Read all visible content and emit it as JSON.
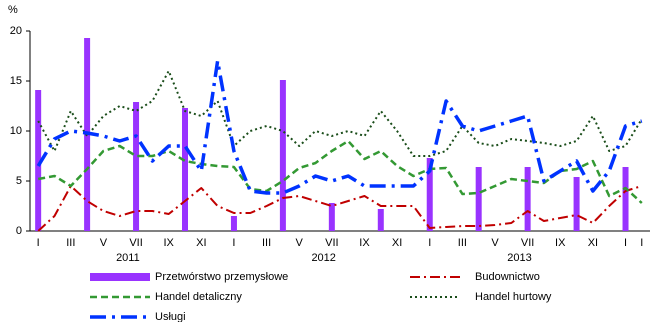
{
  "chart_data": {
    "type": "combo",
    "y_label": "%",
    "ylim": [
      0,
      20
    ],
    "yticks": [
      0,
      5,
      10,
      15,
      20
    ],
    "grid": false,
    "categories": [
      "I",
      null,
      "III",
      null,
      "V",
      null,
      "VII",
      null,
      "IX",
      null,
      "XI",
      null,
      "I",
      null,
      "III",
      null,
      "V",
      null,
      "VII",
      null,
      "IX",
      null,
      "XI",
      null,
      "I",
      null,
      "III",
      null,
      "V",
      null,
      "VII",
      null,
      "IX",
      null,
      "XI",
      null,
      "I",
      "I"
    ],
    "year_labels": [
      "2011",
      "2012",
      "2013"
    ],
    "series": [
      {
        "name": "Przetwórstwo przemysłowe",
        "type": "bar",
        "color": "#9933ff",
        "values": [
          14.1,
          null,
          null,
          19.3,
          null,
          null,
          12.9,
          null,
          null,
          12.3,
          null,
          null,
          1.5,
          null,
          null,
          15.1,
          null,
          null,
          2.8,
          null,
          null,
          2.2,
          null,
          null,
          7.3,
          null,
          null,
          6.4,
          null,
          null,
          6.4,
          null,
          null,
          5.4,
          null,
          null,
          6.4,
          null
        ]
      },
      {
        "name": "Budownictwo",
        "type": "line",
        "color": "#c00000",
        "dash": "10 4 2 4",
        "width": 2,
        "values": [
          0,
          1.5,
          4.5,
          3,
          2,
          1.5,
          2,
          2,
          1.7,
          3,
          4.3,
          2.5,
          1.8,
          1.8,
          2.5,
          3.3,
          3.5,
          3,
          2.5,
          3,
          3.5,
          2.5,
          2.5,
          2.5,
          0.3,
          0.4,
          0.5,
          0.5,
          0.6,
          0.8,
          2,
          1,
          1.3,
          1.6,
          0.8,
          2.5,
          4,
          4.5
        ]
      },
      {
        "name": "Handel detaliczny",
        "type": "line",
        "color": "#339933",
        "dash": "7 4",
        "width": 2.5,
        "values": [
          5.2,
          5.5,
          4.5,
          6.2,
          8,
          8.5,
          7.5,
          7.5,
          8,
          7,
          6.7,
          6.5,
          6.4,
          4.2,
          4,
          5,
          6.3,
          6.8,
          8,
          9,
          7.2,
          8,
          6.5,
          5.5,
          6.2,
          6.3,
          3.7,
          3.8,
          4.5,
          5.2,
          5,
          4.8,
          6,
          6.2,
          7,
          3.5,
          4.3,
          2.8
        ]
      },
      {
        "name": "Handel hurtowy",
        "type": "line",
        "color": "#1a4d1a",
        "dash": "2 3",
        "width": 2,
        "values": [
          11,
          8,
          12,
          9.5,
          11.5,
          12.5,
          12,
          13,
          16,
          12,
          11.5,
          13,
          8.5,
          10,
          10.5,
          10,
          8.5,
          10,
          9.5,
          10,
          9.5,
          12,
          10,
          7.5,
          7.5,
          8,
          10.5,
          8.8,
          8.5,
          9.2,
          9,
          8.8,
          8.5,
          9,
          11.5,
          8,
          8.5,
          11.2
        ]
      },
      {
        "name": "Usługi",
        "type": "line",
        "color": "#0033ff",
        "dash": "16 6 3 6",
        "width": 3.5,
        "values": [
          6.5,
          9.2,
          10,
          9.8,
          9.5,
          9,
          9.5,
          7,
          8.5,
          8.5,
          6,
          17,
          8,
          4,
          3.8,
          3.8,
          4.5,
          5.5,
          5,
          5.5,
          4.5,
          4.5,
          4.5,
          4.5,
          6,
          13,
          10.5,
          10,
          10.5,
          11,
          11.5,
          5,
          6,
          7,
          4,
          6,
          10.5,
          11
        ]
      }
    ]
  }
}
